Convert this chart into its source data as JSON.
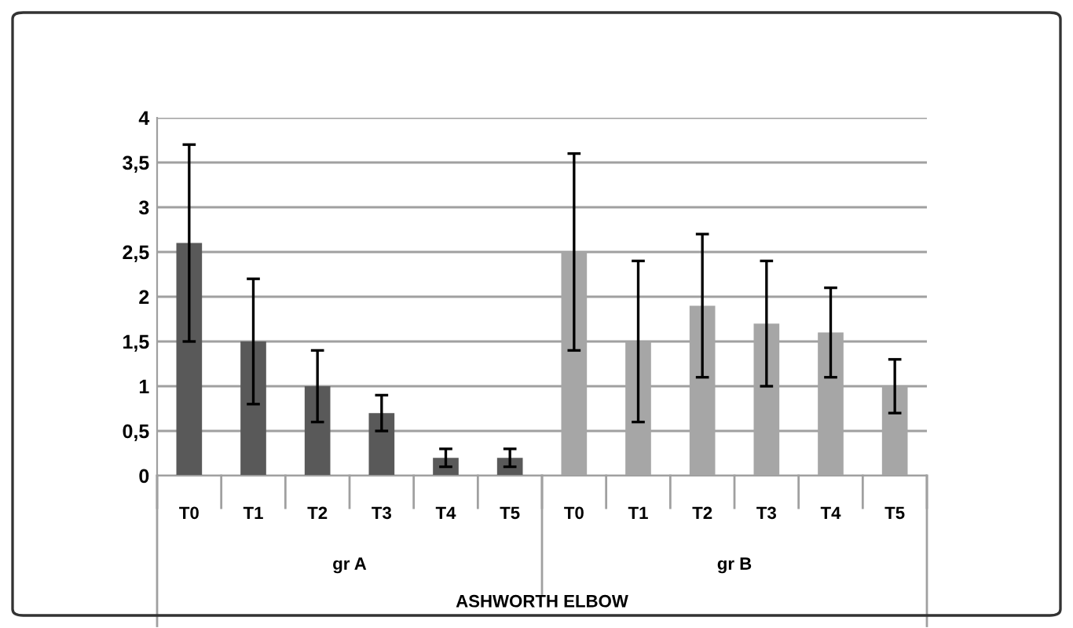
{
  "chart_data": {
    "type": "bar",
    "categories": [
      "T0",
      "T1",
      "T2",
      "T3",
      "T4",
      "T5",
      "T0",
      "T1",
      "T2",
      "T3",
      "T4",
      "T5"
    ],
    "values": [
      2.6,
      1.5,
      1.0,
      0.7,
      0.2,
      0.2,
      2.5,
      1.5,
      1.9,
      1.7,
      1.6,
      1.0
    ],
    "colors": [
      "#595959",
      "#595959",
      "#595959",
      "#595959",
      "#595959",
      "#595959",
      "#a6a6a6",
      "#a6a6a6",
      "#a6a6a6",
      "#a6a6a6",
      "#a6a6a6",
      "#a6a6a6"
    ],
    "errors": [
      [
        1.5,
        3.7
      ],
      [
        0.8,
        2.2
      ],
      [
        0.6,
        1.4
      ],
      [
        0.5,
        0.9
      ],
      [
        0.1,
        0.3
      ],
      [
        0.1,
        0.3
      ],
      [
        1.4,
        3.6
      ],
      [
        0.6,
        2.4
      ],
      [
        1.1,
        2.7
      ],
      [
        1.0,
        2.4
      ],
      [
        1.1,
        2.1
      ],
      [
        0.7,
        1.3
      ]
    ],
    "annotations": [
      "gr A",
      "gr B"
    ],
    "xlabel": "ASHWORTH ELBOW",
    "ylim": [
      0,
      4
    ],
    "yticks": [
      0,
      {
        "value": 0.5,
        "label": "0,5"
      },
      1,
      {
        "value": 1.5,
        "label": "1,5"
      },
      2,
      {
        "value": 2.5,
        "label": "2,5"
      },
      3,
      {
        "value": 3.5,
        "label": "3,5"
      },
      4
    ],
    "grid": "y"
  }
}
